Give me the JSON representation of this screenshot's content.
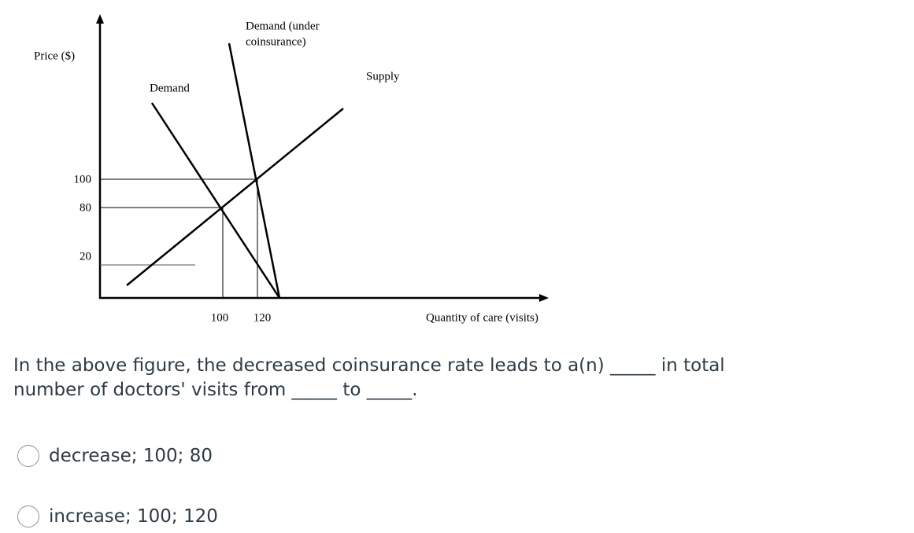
{
  "figure": {
    "y_axis_label": "Price ($)",
    "y_tick_labels": [
      "100",
      "80",
      "20"
    ],
    "x_tick_labels": [
      "100",
      "120"
    ],
    "x_axis_label": "Quantity of care (visits)",
    "demand_label": "Demand",
    "demand_coinsurance_label": [
      "Demand (under",
      "coinsurance)"
    ],
    "supply_label": "Supply"
  },
  "question": {
    "text": [
      "In the above figure, the decreased coinsurance rate leads to a(n) _____ in total",
      "number of doctors' visits from _____ to _____."
    ]
  },
  "options": [
    "decrease; 100; 80",
    "increase; 100; 120"
  ]
}
